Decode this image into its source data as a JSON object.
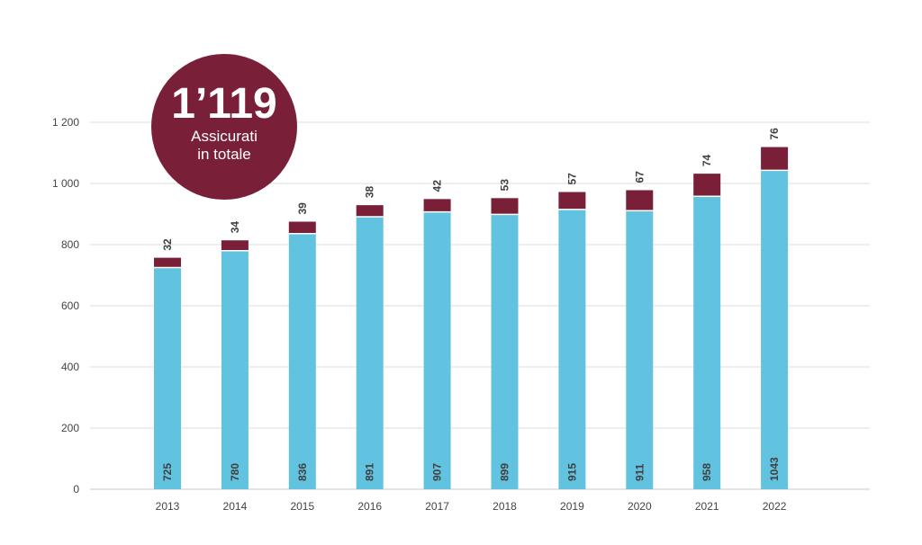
{
  "chart_data": {
    "type": "bar",
    "stacked": true,
    "categories": [
      "2013",
      "2014",
      "2015",
      "2016",
      "2017",
      "2018",
      "2019",
      "2020",
      "2021",
      "2022"
    ],
    "series": [
      {
        "values": [
          725,
          780,
          836,
          891,
          907,
          899,
          915,
          911,
          958,
          1043
        ],
        "color": "#62c3e0"
      },
      {
        "values": [
          32,
          34,
          39,
          38,
          42,
          53,
          57,
          67,
          74,
          76
        ],
        "color": "#7a1f38"
      }
    ],
    "ylim": [
      0,
      1200
    ],
    "yticks": [
      0,
      200,
      400,
      600,
      800,
      1000,
      1200
    ],
    "ytick_labels": [
      "0",
      "200",
      "400",
      "600",
      "800",
      "1 000",
      "1 200"
    ],
    "grid": true,
    "legend": "none"
  },
  "badge": {
    "number": "1’119",
    "line1": "Assicurati",
    "line2": "in totale",
    "color": "#7a1f38"
  }
}
